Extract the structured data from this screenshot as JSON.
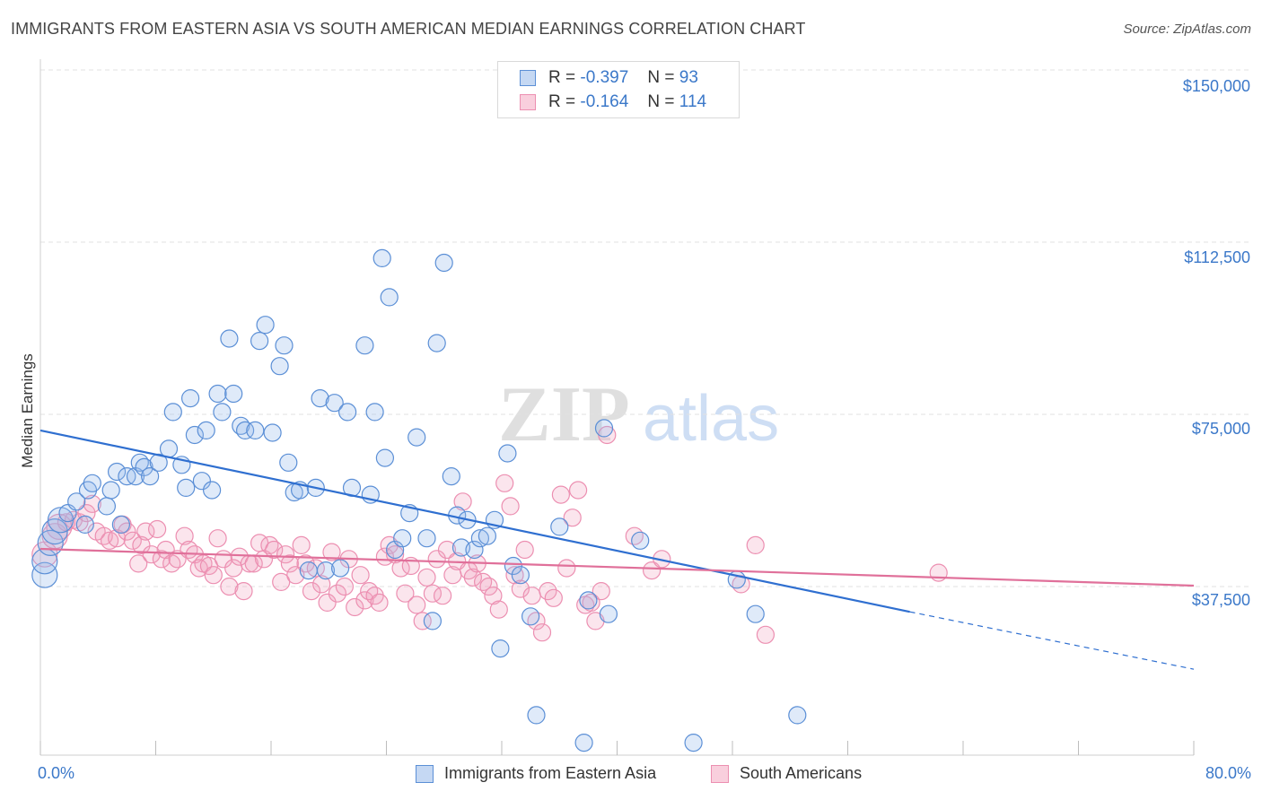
{
  "header": {
    "title": "IMMIGRANTS FROM EASTERN ASIA VS SOUTH AMERICAN MEDIAN EARNINGS CORRELATION CHART",
    "source": "Source: ZipAtlas.com"
  },
  "watermark": {
    "zip": "ZIP",
    "atlas": "atlas"
  },
  "legend": {
    "rows": [
      {
        "r_label": "R =",
        "r_value": "-0.397",
        "n_label": "N =",
        "n_value": "93"
      },
      {
        "r_label": "R =",
        "r_value": "-0.164",
        "n_label": "N =",
        "n_value": "114"
      }
    ]
  },
  "chart_data": {
    "type": "scatter",
    "title": "IMMIGRANTS FROM EASTERN ASIA VS SOUTH AMERICAN MEDIAN EARNINGS CORRELATION CHART",
    "ylabel": "Median Earnings",
    "xlabel": "",
    "xlim": [
      0,
      80
    ],
    "ylim": [
      7000,
      153000
    ],
    "x_tick_labels": [
      "0.0%",
      "80.0%"
    ],
    "y_ticks": [
      37500,
      75000,
      112500,
      150000
    ],
    "y_tick_labels": [
      "$37,500",
      "$75,000",
      "$112,500",
      "$150,000"
    ],
    "grid": true,
    "legend_position": "top-center",
    "colors": {
      "blue": "#5b8fd6",
      "blue_line": "#2f6fd0",
      "pink": "#ec8fb1",
      "pink_line": "#e0709a"
    },
    "series": [
      {
        "name": "Immigrants from Eastern Asia",
        "color": "blue",
        "trend": {
          "x": [
            0,
            60.3
          ],
          "y": [
            71500,
            32000
          ],
          "dashed_to": [
            80,
            19500
          ]
        },
        "points": [
          [
            0.3,
            40000
          ],
          [
            0.3,
            43000
          ],
          [
            0.7,
            47000
          ],
          [
            1.0,
            49500
          ],
          [
            1.4,
            52000
          ],
          [
            1.9,
            53500
          ],
          [
            2.5,
            56000
          ],
          [
            3.1,
            51000
          ],
          [
            3.3,
            58500
          ],
          [
            3.6,
            60000
          ],
          [
            4.6,
            55000
          ],
          [
            4.9,
            58500
          ],
          [
            5.3,
            62500
          ],
          [
            5.6,
            51000
          ],
          [
            6.0,
            61500
          ],
          [
            6.6,
            61500
          ],
          [
            6.9,
            64500
          ],
          [
            7.2,
            63500
          ],
          [
            7.6,
            61500
          ],
          [
            8.2,
            64500
          ],
          [
            8.9,
            67500
          ],
          [
            9.2,
            75500
          ],
          [
            9.8,
            64000
          ],
          [
            10.1,
            59000
          ],
          [
            10.4,
            78500
          ],
          [
            10.7,
            70500
          ],
          [
            11.2,
            60500
          ],
          [
            11.5,
            71500
          ],
          [
            11.9,
            58500
          ],
          [
            12.3,
            79500
          ],
          [
            12.6,
            75500
          ],
          [
            13.1,
            91500
          ],
          [
            13.4,
            79500
          ],
          [
            13.9,
            72500
          ],
          [
            14.2,
            71500
          ],
          [
            14.9,
            71500
          ],
          [
            15.2,
            91000
          ],
          [
            15.6,
            94500
          ],
          [
            16.1,
            71000
          ],
          [
            16.6,
            85500
          ],
          [
            16.9,
            90000
          ],
          [
            17.2,
            64500
          ],
          [
            17.6,
            58000
          ],
          [
            18.0,
            58500
          ],
          [
            18.6,
            41000
          ],
          [
            19.1,
            59000
          ],
          [
            19.4,
            78500
          ],
          [
            19.8,
            41000
          ],
          [
            20.4,
            77500
          ],
          [
            20.8,
            41500
          ],
          [
            21.3,
            75500
          ],
          [
            21.6,
            59000
          ],
          [
            22.5,
            90000
          ],
          [
            22.9,
            57500
          ],
          [
            23.2,
            75500
          ],
          [
            23.7,
            109000
          ],
          [
            23.9,
            65500
          ],
          [
            24.2,
            100500
          ],
          [
            24.6,
            45500
          ],
          [
            25.1,
            48000
          ],
          [
            25.6,
            53500
          ],
          [
            26.1,
            70000
          ],
          [
            26.8,
            48000
          ],
          [
            27.2,
            30000
          ],
          [
            27.5,
            90500
          ],
          [
            28.0,
            108000
          ],
          [
            28.5,
            61500
          ],
          [
            28.9,
            53000
          ],
          [
            29.2,
            46000
          ],
          [
            29.6,
            52000
          ],
          [
            30.1,
            45500
          ],
          [
            30.5,
            48000
          ],
          [
            31.0,
            48500
          ],
          [
            31.5,
            52000
          ],
          [
            31.9,
            24000
          ],
          [
            32.4,
            66500
          ],
          [
            32.8,
            42000
          ],
          [
            33.3,
            40000
          ],
          [
            34.0,
            31000
          ],
          [
            34.4,
            9500
          ],
          [
            36.0,
            50500
          ],
          [
            37.7,
            3500
          ],
          [
            38.0,
            34500
          ],
          [
            39.1,
            72000
          ],
          [
            39.4,
            31500
          ],
          [
            41.6,
            47500
          ],
          [
            45.3,
            3500
          ],
          [
            48.3,
            39000
          ],
          [
            49.6,
            31500
          ],
          [
            52.5,
            9500
          ]
        ]
      },
      {
        "name": "South Americans",
        "color": "pink",
        "trend": {
          "x": [
            0,
            80
          ],
          "y": [
            45700,
            37700
          ]
        },
        "points": [
          [
            0.3,
            44500
          ],
          [
            1.0,
            48500
          ],
          [
            1.3,
            50500
          ],
          [
            1.8,
            51500
          ],
          [
            2.3,
            52000
          ],
          [
            2.7,
            51500
          ],
          [
            3.2,
            53500
          ],
          [
            3.6,
            55500
          ],
          [
            3.9,
            49500
          ],
          [
            4.4,
            48500
          ],
          [
            4.8,
            47500
          ],
          [
            5.3,
            48000
          ],
          [
            5.7,
            51000
          ],
          [
            6.0,
            49500
          ],
          [
            6.4,
            47500
          ],
          [
            6.8,
            42500
          ],
          [
            7.0,
            46500
          ],
          [
            7.3,
            49500
          ],
          [
            7.7,
            44500
          ],
          [
            8.1,
            50000
          ],
          [
            8.4,
            43500
          ],
          [
            8.7,
            45500
          ],
          [
            9.1,
            42500
          ],
          [
            9.5,
            43500
          ],
          [
            10.0,
            48500
          ],
          [
            10.3,
            45500
          ],
          [
            10.7,
            44500
          ],
          [
            11.0,
            41500
          ],
          [
            11.3,
            42500
          ],
          [
            11.7,
            42000
          ],
          [
            12.0,
            40000
          ],
          [
            12.3,
            48000
          ],
          [
            12.7,
            43500
          ],
          [
            13.1,
            37500
          ],
          [
            13.4,
            41500
          ],
          [
            13.8,
            44000
          ],
          [
            14.1,
            36500
          ],
          [
            14.5,
            42500
          ],
          [
            14.8,
            42500
          ],
          [
            15.2,
            47000
          ],
          [
            15.5,
            43500
          ],
          [
            15.9,
            46500
          ],
          [
            16.2,
            45500
          ],
          [
            16.7,
            38500
          ],
          [
            17.0,
            44500
          ],
          [
            17.3,
            42500
          ],
          [
            17.7,
            40000
          ],
          [
            18.1,
            46500
          ],
          [
            18.4,
            42500
          ],
          [
            18.8,
            36500
          ],
          [
            19.1,
            41500
          ],
          [
            19.5,
            38000
          ],
          [
            19.9,
            34000
          ],
          [
            20.2,
            45000
          ],
          [
            20.6,
            36000
          ],
          [
            21.1,
            37500
          ],
          [
            21.4,
            43500
          ],
          [
            21.8,
            33000
          ],
          [
            22.2,
            40000
          ],
          [
            22.5,
            34500
          ],
          [
            22.8,
            36500
          ],
          [
            23.2,
            35500
          ],
          [
            23.5,
            34000
          ],
          [
            23.9,
            44000
          ],
          [
            24.2,
            46500
          ],
          [
            24.6,
            44500
          ],
          [
            25.0,
            41500
          ],
          [
            25.3,
            36000
          ],
          [
            25.7,
            42000
          ],
          [
            26.1,
            33500
          ],
          [
            26.5,
            30000
          ],
          [
            26.8,
            39500
          ],
          [
            27.2,
            36000
          ],
          [
            27.5,
            43500
          ],
          [
            27.9,
            35500
          ],
          [
            28.2,
            45500
          ],
          [
            28.6,
            40000
          ],
          [
            28.9,
            43000
          ],
          [
            29.3,
            56000
          ],
          [
            29.7,
            41000
          ],
          [
            30.0,
            39500
          ],
          [
            30.3,
            42500
          ],
          [
            30.7,
            38500
          ],
          [
            31.1,
            37500
          ],
          [
            31.4,
            35500
          ],
          [
            31.8,
            32500
          ],
          [
            32.2,
            60000
          ],
          [
            32.6,
            55000
          ],
          [
            32.9,
            40000
          ],
          [
            33.3,
            37000
          ],
          [
            33.6,
            45500
          ],
          [
            34.1,
            35500
          ],
          [
            34.4,
            30000
          ],
          [
            34.8,
            27500
          ],
          [
            35.2,
            36500
          ],
          [
            35.6,
            35000
          ],
          [
            36.1,
            57500
          ],
          [
            36.5,
            41500
          ],
          [
            36.9,
            52500
          ],
          [
            37.3,
            58500
          ],
          [
            37.8,
            33500
          ],
          [
            38.2,
            34000
          ],
          [
            38.5,
            30000
          ],
          [
            38.9,
            36500
          ],
          [
            39.3,
            70500
          ],
          [
            41.2,
            48500
          ],
          [
            42.4,
            41000
          ],
          [
            43.1,
            43500
          ],
          [
            48.6,
            38000
          ],
          [
            49.6,
            46500
          ],
          [
            50.3,
            27000
          ],
          [
            62.3,
            40500
          ]
        ]
      }
    ]
  },
  "bottom_legend": {
    "items": [
      {
        "label": "Immigrants from Eastern Asia"
      },
      {
        "label": "South Americans"
      }
    ]
  }
}
